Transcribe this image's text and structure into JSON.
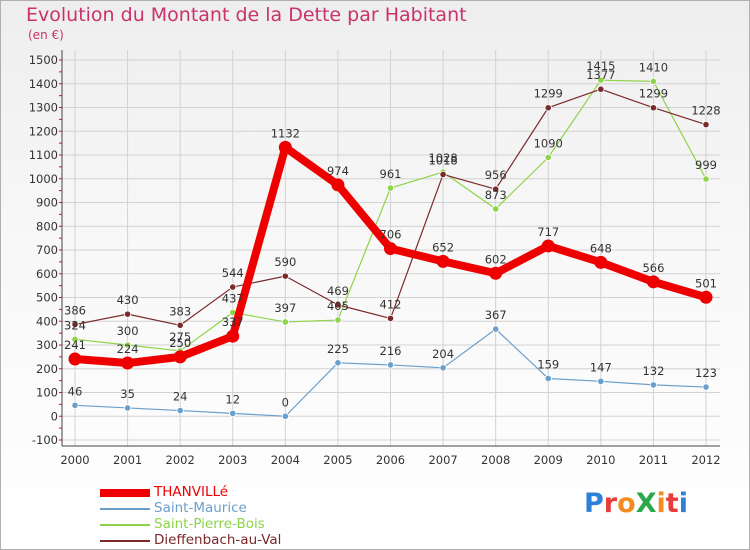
{
  "title": "Evolution du Montant de la Dette par Habitant",
  "subtitle": "(en €)",
  "logo": {
    "text": "ProXiti",
    "letters": [
      "P",
      "r",
      "o",
      "X",
      "i",
      "t",
      "i"
    ],
    "colors": [
      "#2d7fd8",
      "#e83b3b",
      "#f28c1f",
      "#2aa84a",
      "#f28c1f",
      "#e83b3b",
      "#2d7fd8"
    ]
  },
  "chart_data": {
    "type": "line",
    "x": [
      "2000",
      "2001",
      "2002",
      "2003",
      "2004",
      "2005",
      "2006",
      "2007",
      "2008",
      "2009",
      "2010",
      "2011",
      "2012"
    ],
    "ylim": [
      -100,
      1500
    ],
    "yticks": [
      "-100",
      "0",
      "100",
      "200",
      "300",
      "400",
      "500",
      "600",
      "700",
      "800",
      "900",
      "1000",
      "1100",
      "1200",
      "1300",
      "1400",
      "1500"
    ],
    "grid": true,
    "legend_position": "bottom-left",
    "series": [
      {
        "name": "THANVILLé",
        "color": "#ee0000",
        "values": [
          241,
          224,
          250,
          337,
          1132,
          974,
          706,
          652,
          602,
          717,
          648,
          566,
          501
        ],
        "labels": [
          "241",
          "224",
          "250",
          "337",
          "1132",
          "974",
          "706",
          "652",
          "602",
          "717",
          "648",
          "566",
          "501"
        ]
      },
      {
        "name": "Saint-Maurice",
        "color": "#6a9fcb",
        "values": [
          46,
          35,
          24,
          12,
          0,
          225,
          216,
          204,
          367,
          159,
          147,
          132,
          123
        ],
        "labels": [
          "46",
          "35",
          "24",
          "12",
          "0",
          "225",
          "216",
          "204",
          "367",
          "159",
          "147",
          "132",
          "123"
        ]
      },
      {
        "name": "Saint-Pierre-Bois",
        "color": "#8ed34a",
        "values": [
          324,
          300,
          275,
          437,
          397,
          405,
          961,
          1028,
          873,
          1090,
          1415,
          1410,
          999
        ],
        "labels": [
          "324",
          "300",
          "275",
          "437",
          "397",
          "405",
          "961",
          "1028",
          "873",
          "1090",
          "1415",
          "1410",
          "999"
        ]
      },
      {
        "name": "Dieffenbach-au-Val",
        "color": "#7a2a2a",
        "values": [
          386,
          430,
          383,
          544,
          590,
          469,
          412,
          1018,
          956,
          1299,
          1377,
          1299,
          1228
        ],
        "labels": [
          "386",
          "430",
          "383",
          "544",
          "590",
          "469",
          "412",
          "1018",
          "956",
          "1299",
          "1377",
          "1299",
          "1228"
        ]
      }
    ]
  }
}
